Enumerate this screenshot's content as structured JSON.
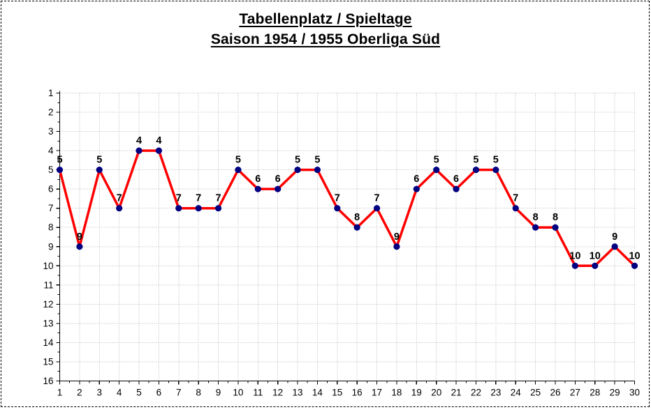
{
  "title": {
    "line1": "Tabellenplatz / Spieltage",
    "line2": "Saison 1954 / 1955 Oberliga Süd"
  },
  "chart_data": {
    "type": "line",
    "title": "Tabellenplatz / Spieltage",
    "subtitle": "Saison 1954 / 1955 Oberliga Süd",
    "xlabel": "",
    "ylabel": "",
    "x": [
      1,
      2,
      3,
      4,
      5,
      6,
      7,
      8,
      9,
      10,
      11,
      12,
      13,
      14,
      15,
      16,
      17,
      18,
      19,
      20,
      21,
      22,
      23,
      24,
      25,
      26,
      27,
      28,
      29,
      30
    ],
    "values": [
      5,
      9,
      5,
      7,
      4,
      4,
      7,
      7,
      7,
      5,
      6,
      6,
      5,
      5,
      7,
      8,
      7,
      9,
      6,
      5,
      6,
      5,
      5,
      7,
      8,
      8,
      10,
      10,
      9,
      10
    ],
    "data_labels_shown": true,
    "xlim": [
      1,
      30
    ],
    "ylim": [
      1,
      16
    ],
    "y_axis_inverted": true,
    "x_ticks": [
      1,
      2,
      3,
      4,
      5,
      6,
      7,
      8,
      9,
      10,
      11,
      12,
      13,
      14,
      15,
      16,
      17,
      18,
      19,
      20,
      21,
      22,
      23,
      24,
      25,
      26,
      27,
      28,
      29,
      30
    ],
    "y_ticks": [
      1,
      2,
      3,
      4,
      5,
      6,
      7,
      8,
      9,
      10,
      11,
      12,
      13,
      14,
      15,
      16
    ],
    "grid": true,
    "legend": "none",
    "colors": {
      "line": "#ff0000",
      "marker": "#000080",
      "grid": "#b4b4b4",
      "axis": "#000000",
      "text": "#000000",
      "background": "#ffffff"
    }
  }
}
